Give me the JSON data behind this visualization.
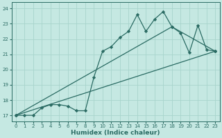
{
  "xlabel": "Humidex (Indice chaleur)",
  "bg_color": "#c5e8e2",
  "grid_color": "#a8d4cc",
  "line_color": "#2a6b63",
  "xlim": [
    -0.5,
    23.5
  ],
  "ylim": [
    16.6,
    24.4
  ],
  "xticks": [
    0,
    1,
    2,
    3,
    4,
    5,
    6,
    7,
    8,
    9,
    10,
    11,
    12,
    13,
    14,
    15,
    16,
    17,
    18,
    19,
    20,
    21,
    22,
    23
  ],
  "yticks": [
    17,
    18,
    19,
    20,
    21,
    22,
    23,
    24
  ],
  "curve1_x": [
    0,
    1,
    2,
    3,
    4,
    5,
    6,
    7,
    8,
    9,
    10,
    11,
    12,
    13,
    14,
    15,
    16,
    17,
    18,
    19,
    20,
    21,
    22,
    23
  ],
  "curve1_y": [
    17.0,
    17.0,
    17.0,
    17.5,
    17.7,
    17.7,
    17.6,
    17.3,
    17.3,
    19.5,
    21.2,
    21.5,
    22.1,
    22.5,
    23.6,
    22.5,
    23.3,
    23.8,
    22.8,
    22.4,
    21.1,
    22.9,
    21.3,
    21.2
  ],
  "line2_x": [
    0,
    18,
    23
  ],
  "line2_y": [
    17.0,
    22.8,
    21.2
  ],
  "line3_x": [
    0,
    23
  ],
  "line3_y": [
    17.0,
    21.2
  ]
}
